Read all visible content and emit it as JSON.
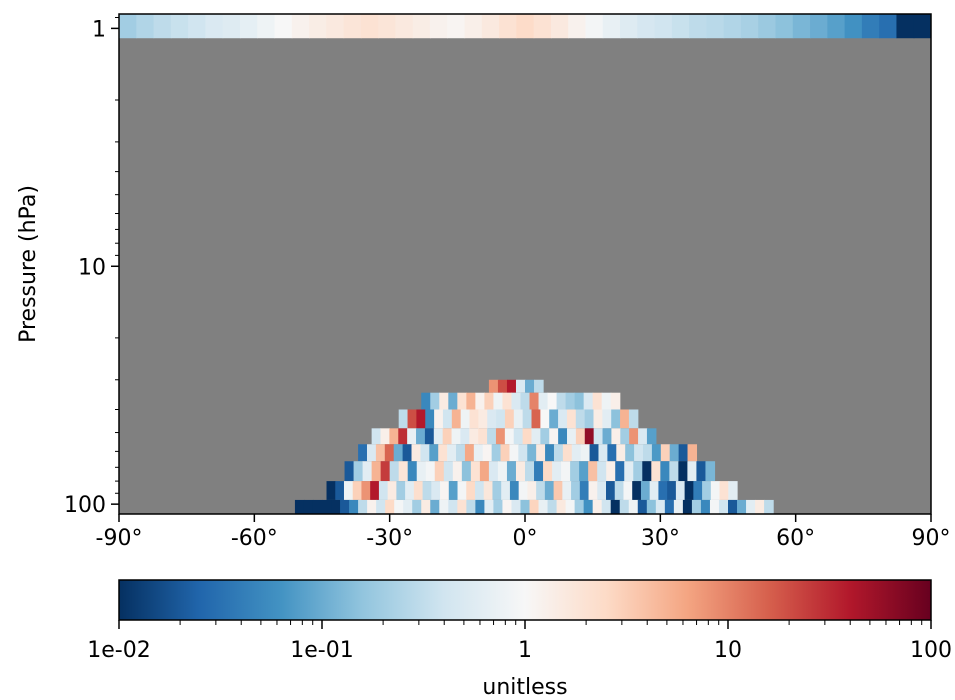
{
  "chart_data": {
    "type": "heatmap",
    "title": "",
    "xlabel": "",
    "ylabel": "Pressure (hPa)",
    "x_range": [
      -90,
      90
    ],
    "y_range_hPa": [
      110,
      0.87
    ],
    "y_scale": "log",
    "y_inverted": true,
    "x_ticks": [
      -90,
      -60,
      -30,
      0,
      30,
      60,
      90
    ],
    "x_tick_labels": [
      "-90°",
      "-60°",
      "-30°",
      "0°",
      "30°",
      "60°",
      "90°"
    ],
    "y_ticks": [
      1,
      10,
      100
    ],
    "y_tick_labels": [
      "1",
      "10",
      "100"
    ],
    "missing_color": "#808080",
    "colormap": "RdBu_r",
    "colorbar": {
      "label": "unitless",
      "scale": "log",
      "range": [
        0.01,
        100
      ],
      "ticks": [
        0.01,
        0.1,
        1,
        10,
        100
      ],
      "tick_labels": [
        "1e-02",
        "1e-01",
        "1",
        "10",
        "100"
      ],
      "placement": "bottom"
    },
    "band_top": {
      "p_range": [
        0.87,
        1.1
      ],
      "values": [
        0.2,
        0.25,
        0.3,
        0.35,
        0.4,
        0.5,
        0.55,
        0.65,
        0.8,
        1.0,
        1.2,
        1.4,
        1.6,
        1.8,
        2.0,
        1.8,
        1.6,
        1.4,
        1.2,
        1.1,
        1.3,
        1.6,
        2.0,
        2.4,
        2.0,
        1.6,
        1.2,
        0.9,
        0.7,
        0.55,
        0.45,
        0.4,
        0.35,
        0.3,
        0.28,
        0.25,
        0.22,
        0.18,
        0.15,
        0.12,
        0.1,
        0.08,
        0.06,
        0.04,
        0.03,
        0.01,
        0.01
      ]
    },
    "rows": [
      {
        "p_range": [
          30,
          34
        ],
        "lat_range": [
          -8,
          4
        ],
        "values": [
          8,
          20,
          40,
          0.5,
          0.1,
          0.3
        ]
      },
      {
        "p_range": [
          34,
          40
        ],
        "lat_range": [
          -23,
          21
        ],
        "values": [
          0.05,
          0.2,
          1.5,
          0.1,
          2,
          5,
          1.2,
          3,
          0.8,
          2,
          0.5,
          0.3,
          10,
          0.6,
          1,
          0.3,
          0.2,
          0.15,
          0.5,
          2,
          0.8,
          1.3
        ]
      },
      {
        "p_range": [
          40,
          48
        ],
        "lat_range": [
          -28,
          25
        ],
        "values": [
          0.3,
          20,
          40,
          0.05,
          1.2,
          0.4,
          5,
          0.8,
          2,
          1.5,
          0.5,
          0.4,
          3,
          0.7,
          0.3,
          15,
          1,
          0.1,
          0.5,
          2,
          0.3,
          0.2,
          1.4,
          0.6,
          0.15,
          5,
          0.3
        ]
      },
      {
        "p_range": [
          48,
          56
        ],
        "lat_range": [
          -34,
          29
        ],
        "values": [
          0.4,
          1.3,
          5,
          30,
          0.7,
          0.1,
          0.02,
          0.6,
          3,
          0.8,
          0.5,
          1.5,
          2,
          0.3,
          8,
          0.9,
          0.4,
          2.5,
          0.6,
          0.2,
          1.1,
          0.05,
          0.7,
          3,
          60,
          0.4,
          0.1,
          1.3,
          0.2,
          8,
          0.5,
          0.08
        ]
      },
      {
        "p_range": [
          56,
          66
        ],
        "lat_range": [
          -37,
          38
        ],
        "values": [
          0.03,
          0.5,
          4,
          15,
          0.1,
          0.02,
          1.5,
          0.4,
          0.08,
          2,
          0.6,
          0.3,
          6,
          0.7,
          1.1,
          0.2,
          3,
          0.9,
          0.4,
          0.12,
          1.6,
          0.05,
          0.3,
          2.2,
          0.6,
          0.8,
          0.02,
          0.5,
          0.03,
          1.4,
          0.15,
          0.4,
          0.3,
          0.07,
          3,
          0.1,
          0.02,
          5
        ]
      },
      {
        "p_range": [
          66,
          80
        ],
        "lat_range": [
          -40,
          42
        ],
        "values": [
          0.02,
          0.2,
          0.6,
          5,
          25,
          0.3,
          1.8,
          0.05,
          0.7,
          0.9,
          3,
          0.4,
          1.2,
          0.15,
          2,
          6,
          0.5,
          0.8,
          0.1,
          1.5,
          0.3,
          0.04,
          2.5,
          0.6,
          0.9,
          0.2,
          0.08,
          4,
          0.4,
          1.3,
          0.03,
          0.6,
          0.2,
          0.01,
          2,
          0.05,
          0.3,
          0.01,
          0.6,
          0.02,
          0.12
        ]
      },
      {
        "p_range": [
          80,
          96
        ],
        "lat_range": [
          -44,
          47
        ],
        "values": [
          0.01,
          0.02,
          0.8,
          3,
          8,
          40,
          0.4,
          1.5,
          0.2,
          0.6,
          2.2,
          0.3,
          0.5,
          1.1,
          0.08,
          0.9,
          2.5,
          0.4,
          1.7,
          0.2,
          0.6,
          0.05,
          0.9,
          1.3,
          0.3,
          0.1,
          3.5,
          0.7,
          0.2,
          0.04,
          1.2,
          0.5,
          0.02,
          0.3,
          0.9,
          0.01,
          0.1,
          0.6,
          0.03,
          0.02,
          0.5,
          0.01,
          0.04,
          0.2,
          0.9,
          2,
          0.6
        ]
      },
      {
        "p_range": [
          96,
          110
        ],
        "lat_range": [
          -51,
          55
        ],
        "values": [
          0.01,
          0.01,
          0.01,
          0.01,
          0.01,
          0.02,
          0.05,
          0.3,
          1.2,
          0.4,
          2.5,
          0.9,
          0.6,
          0.2,
          1.5,
          0.1,
          0.8,
          0.4,
          2,
          0.3,
          0.05,
          0.6,
          0.2,
          1.1,
          0.5,
          0.15,
          2.8,
          0.7,
          0.3,
          1.6,
          0.9,
          0.2,
          0.06,
          1.3,
          0.4,
          0.01,
          0.3,
          0.8,
          0.02,
          0.15,
          0.5,
          0.03,
          0.7,
          0.01,
          0.2,
          0.05,
          0.9,
          0.4,
          0.02,
          0.1,
          0.6,
          1.5,
          0.3
        ]
      }
    ]
  }
}
